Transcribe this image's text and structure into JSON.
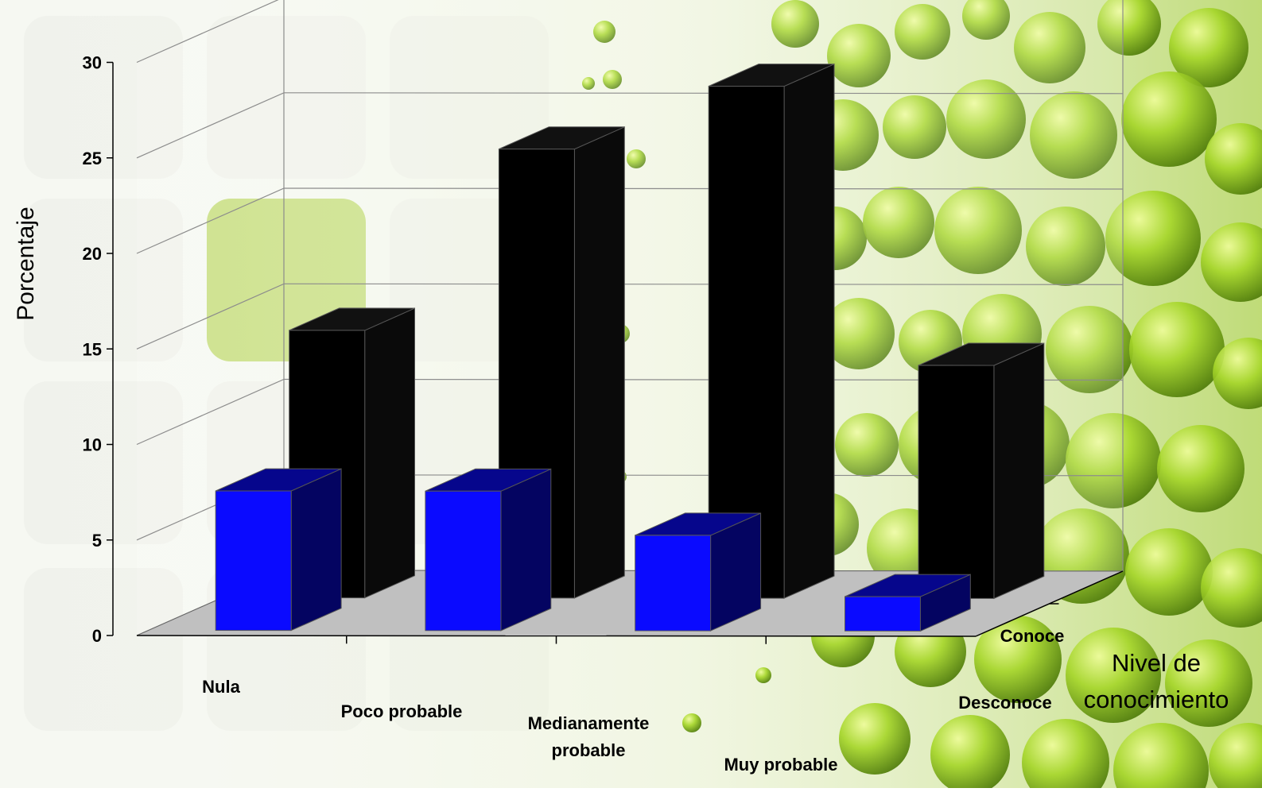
{
  "chart_data": {
    "type": "bar",
    "subtype": "3d-column",
    "categories": [
      "Nula",
      "Poco probable",
      "Medianamente probable",
      "Muy probable"
    ],
    "category_label_lines": [
      [
        "Nula"
      ],
      [
        "Poco probable"
      ],
      [
        "Medianamente",
        "probable"
      ],
      [
        "Muy probable"
      ]
    ],
    "series": [
      {
        "name": "Desconoce",
        "values": [
          7.3,
          7.3,
          5.0,
          1.8
        ]
      },
      {
        "name": "Conoce",
        "values": [
          14.0,
          23.5,
          26.8,
          12.2
        ]
      }
    ],
    "ylabel": "Porcentaje",
    "depth_label": "Nivel de conocimiento",
    "depth_label_lines": [
      "Nivel de",
      "conocimiento"
    ],
    "ylim": [
      0,
      30
    ],
    "yticks": [
      0,
      5,
      10,
      15,
      20,
      25,
      30
    ],
    "grid": true,
    "colors": {
      "Desconoce": "#0a0aff",
      "Conoce": "#000000",
      "floor": "#c0c0c0",
      "grid": "#8c8c8c",
      "background_green": "#9acd32"
    }
  }
}
